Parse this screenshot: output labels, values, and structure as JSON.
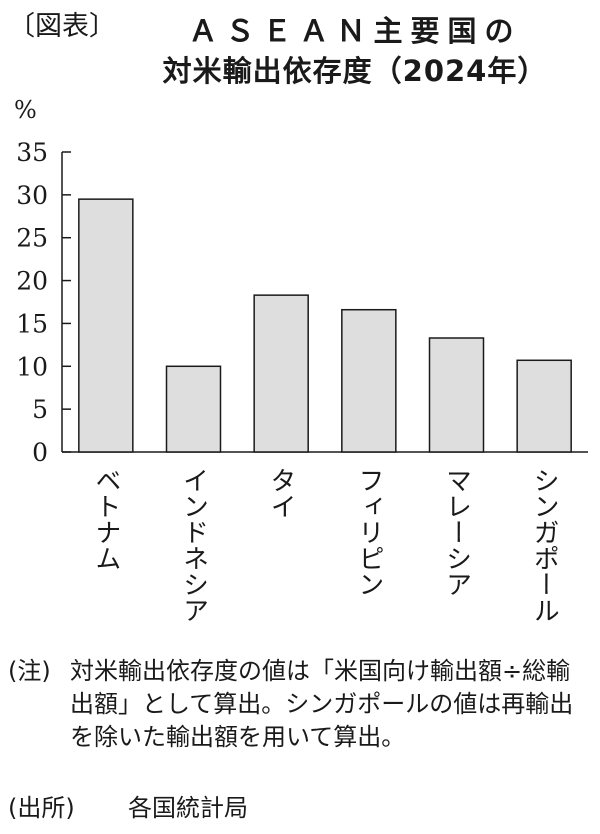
{
  "figure_label": "〔図表〕",
  "title_line1": "ＡＳＥＡＮ主要国の",
  "title_line2": "対米輸出依存度（2024年）",
  "unit": "%",
  "chart_data": {
    "type": "bar",
    "title": "ＡＳＥＡＮ主要国の対米輸出依存度（2024年）",
    "ylabel": "%",
    "ylim": [
      0,
      35
    ],
    "yticks": [
      0,
      5,
      10,
      15,
      20,
      25,
      30,
      35
    ],
    "categories": [
      "ベトナム",
      "インドネシア",
      "タイ",
      "フィリピン",
      "マレーシア",
      "シンガポール"
    ],
    "values": [
      29.5,
      10.0,
      18.3,
      16.6,
      13.3,
      10.7
    ],
    "bar_color": "#dedede",
    "grid": false,
    "legend": "none"
  },
  "note_label": "(注)",
  "note_text": "対米輸出依存度の値は「米国向け輸出額÷総輸出額」として算出。シンガポールの値は再輸出を除いた輸出額を用いて算出。",
  "source_label": "(出所)",
  "source_text": "各国統計局"
}
